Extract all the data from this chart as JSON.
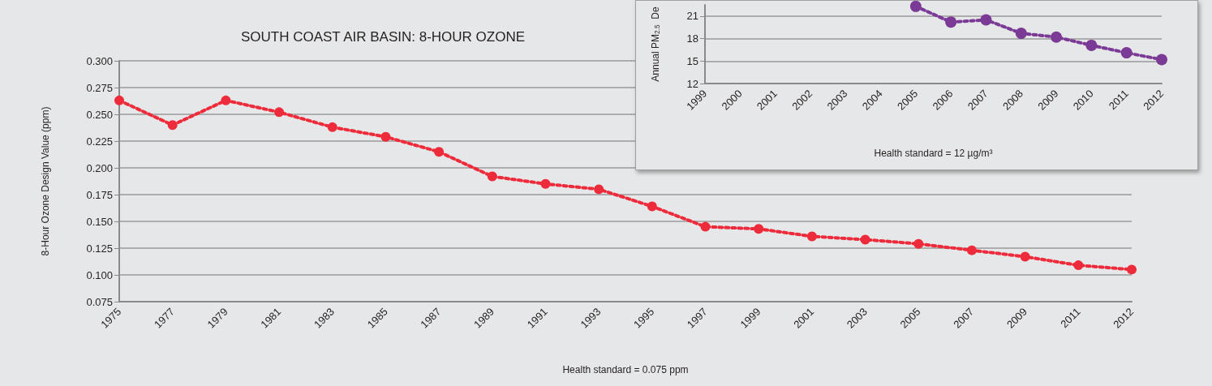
{
  "chart_data": [
    {
      "type": "line",
      "title": "SOUTH COAST AIR BASIN: 8-HOUR OZONE",
      "xlabel": "Health standard = 0.075 ppm",
      "ylabel": "8-Hour Ozone Design Value (ppm)",
      "categories": [
        "1975",
        "1977",
        "1979",
        "1981",
        "1983",
        "1985",
        "1987",
        "1989",
        "1991",
        "1993",
        "1995",
        "1997",
        "1999",
        "2001",
        "2003",
        "2005",
        "2007",
        "2009",
        "2011",
        "2012"
      ],
      "series": [
        {
          "color": "#ee2b3b",
          "values": [
            0.263,
            0.24,
            0.263,
            0.252,
            0.238,
            0.229,
            0.215,
            0.192,
            0.185,
            0.18,
            0.164,
            0.145,
            0.143,
            0.136,
            0.133,
            0.129,
            0.123,
            0.117,
            0.109,
            0.105
          ]
        }
      ],
      "ylim": [
        0.075,
        0.3
      ],
      "yticks": [
        0.075,
        {
          "value": 0.1,
          "label": "0.100"
        },
        0.125,
        {
          "value": 0.15,
          "label": "0.150"
        },
        0.175,
        {
          "value": 0.2,
          "label": "0.200"
        },
        0.225,
        {
          "value": 0.25,
          "label": "0.250"
        },
        0.275,
        {
          "value": 0.3,
          "label": "0.300"
        }
      ],
      "grid": "y",
      "marker": "circle",
      "line_style": "dotted"
    },
    {
      "type": "line",
      "xlabel": "Health standard = 12 µg/m³",
      "ylabel": "Annual PM$_{2.5}$  De",
      "categories": [
        "1999",
        "2000",
        "2001",
        "2002",
        "2003",
        "2004",
        "2005",
        "2006",
        "2007",
        "2008",
        "2009",
        "2010",
        "2011",
        "2012"
      ],
      "series": [
        {
          "color": "#7b3a96",
          "values": [
            null,
            null,
            null,
            null,
            null,
            null,
            22.3,
            20.2,
            20.5,
            18.7,
            18.2,
            17.1,
            16.1,
            15.2
          ]
        }
      ],
      "ylim": [
        12,
        22.5
      ],
      "yticks": [
        12,
        15,
        18,
        21
      ],
      "grid": "y",
      "marker": "circle",
      "line_style": "dotted"
    }
  ]
}
